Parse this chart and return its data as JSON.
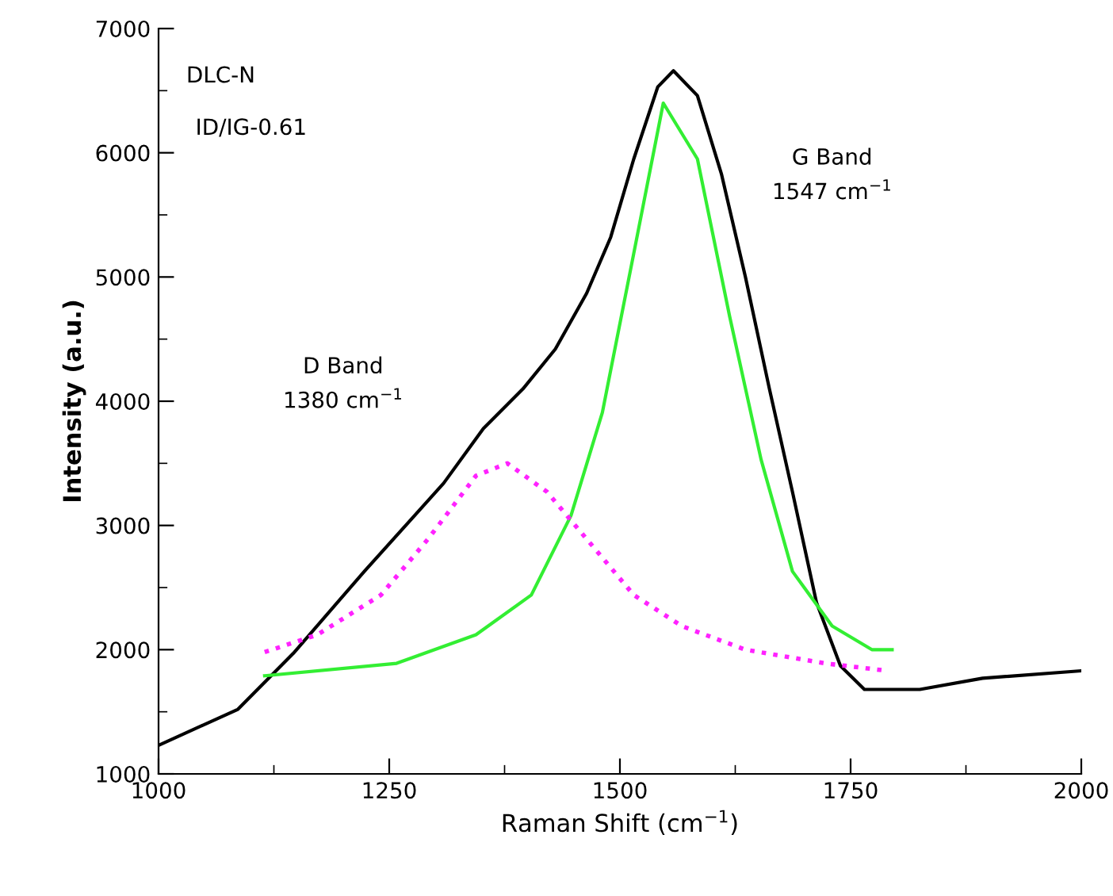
{
  "chart_data": {
    "type": "line",
    "xlabel": "Raman Shift (cm$^{−1}$)",
    "ylabel": "Intensity (a.u.)",
    "xlim": [
      1000,
      2000
    ],
    "xticks": [
      1000,
      1250,
      1500,
      1750,
      2000
    ],
    "ylim": [
      1000,
      7000
    ],
    "yticks": [
      1000,
      2000,
      3000,
      4000,
      5000,
      6000,
      7000
    ],
    "grid": false,
    "marker": "none",
    "annotations": [
      "DLC-N",
      "ID/IG-0.61",
      "D Band\n1380 cm$^{−1}$",
      "G Band\n1547 cm$^{−1}$"
    ],
    "series": [
      {
        "color": "#000000",
        "line_style": "solid",
        "x": [
          1000,
          1086,
          1146,
          1223,
          1309,
          1352,
          1395,
          1430,
          1464,
          1490,
          1515,
          1541,
          1558,
          1584,
          1610,
          1636,
          1662,
          1687,
          1713,
          1739,
          1765,
          1825,
          1893,
          2000
        ],
        "values": [
          1230,
          1520,
          1970,
          2630,
          3340,
          3780,
          4100,
          4420,
          4870,
          5320,
          5950,
          6530,
          6660,
          6460,
          5830,
          5000,
          4100,
          3270,
          2380,
          1870,
          1680,
          1680,
          1770,
          1830
        ]
      },
      {
        "color": "#33ee33",
        "line_style": "solid",
        "x": [
          1115,
          1258,
          1344,
          1404,
          1447,
          1481,
          1515,
          1547,
          1584,
          1619,
          1653,
          1687,
          1730,
          1773,
          1795
        ],
        "values": [
          1790,
          1890,
          2120,
          2440,
          3080,
          3910,
          5190,
          6400,
          5950,
          4680,
          3530,
          2630,
          2190,
          2000,
          2000
        ]
      },
      {
        "color": "#ff22ff",
        "line_style": "dotted",
        "x": [
          1115,
          1172,
          1241,
          1292,
          1344,
          1378,
          1421,
          1464,
          1515,
          1567,
          1636,
          1722,
          1790
        ],
        "values": [
          1980,
          2120,
          2440,
          2890,
          3400,
          3500,
          3270,
          2890,
          2440,
          2190,
          2000,
          1890,
          1830
        ]
      }
    ]
  }
}
